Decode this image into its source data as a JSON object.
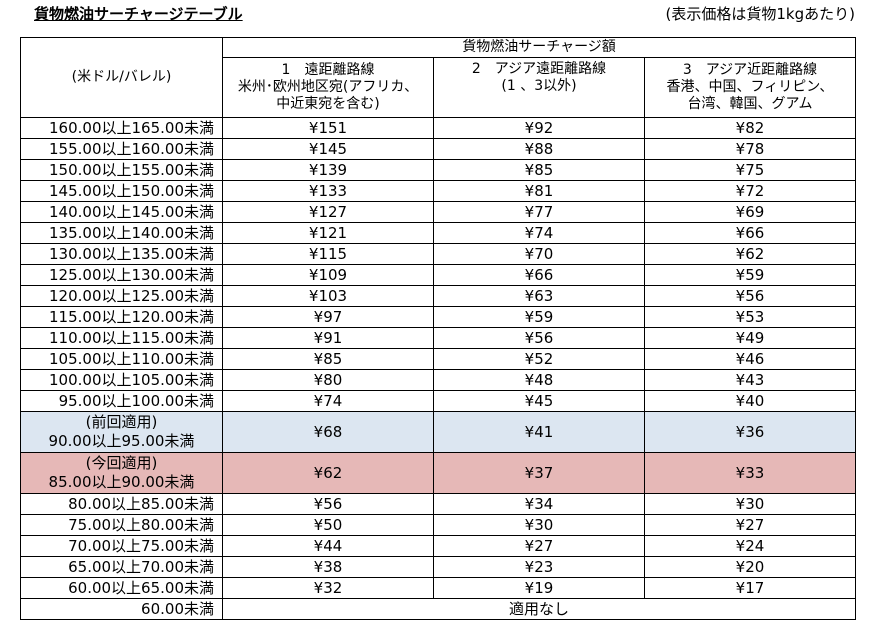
{
  "title": "貨物燃油サーチャージテーブル",
  "note": "(表示価格は貨物1kgあたり)",
  "header": {
    "range_label": "(米ドル/バレル)",
    "group_label": "貨物燃油サーチャージ額",
    "col1": [
      "1　遠距離路線",
      "米州･欧州地区宛(アフリカ、",
      "中近東宛を含む)"
    ],
    "col2": [
      "2　アジア遠距離路線",
      "(1 、3以外)"
    ],
    "col3": [
      "3　アジア近距離路線",
      "香港、中国、フィリピン、",
      "台湾、韓国、グアム"
    ]
  },
  "rows": [
    {
      "range": "160.00以上165.00未満",
      "c1": "¥151",
      "c2": "¥92",
      "c3": "¥82"
    },
    {
      "range": "155.00以上160.00未満",
      "c1": "¥145",
      "c2": "¥88",
      "c3": "¥78"
    },
    {
      "range": "150.00以上155.00未満",
      "c1": "¥139",
      "c2": "¥85",
      "c3": "¥75"
    },
    {
      "range": "145.00以上150.00未満",
      "c1": "¥133",
      "c2": "¥81",
      "c3": "¥72"
    },
    {
      "range": "140.00以上145.00未満",
      "c1": "¥127",
      "c2": "¥77",
      "c3": "¥69"
    },
    {
      "range": "135.00以上140.00未満",
      "c1": "¥121",
      "c2": "¥74",
      "c3": "¥66"
    },
    {
      "range": "130.00以上135.00未満",
      "c1": "¥115",
      "c2": "¥70",
      "c3": "¥62"
    },
    {
      "range": "125.00以上130.00未満",
      "c1": "¥109",
      "c2": "¥66",
      "c3": "¥59"
    },
    {
      "range": "120.00以上125.00未満",
      "c1": "¥103",
      "c2": "¥63",
      "c3": "¥56"
    },
    {
      "range": "115.00以上120.00未満",
      "c1": "¥97",
      "c2": "¥59",
      "c3": "¥53"
    },
    {
      "range": "110.00以上115.00未満",
      "c1": "¥91",
      "c2": "¥56",
      "c3": "¥49"
    },
    {
      "range": "105.00以上110.00未満",
      "c1": "¥85",
      "c2": "¥52",
      "c3": "¥46"
    },
    {
      "range": "100.00以上105.00未満",
      "c1": "¥80",
      "c2": "¥48",
      "c3": "¥43"
    },
    {
      "range": "95.00以上100.00未満",
      "c1": "¥74",
      "c2": "¥45",
      "c3": "¥40"
    }
  ],
  "previous": {
    "tag": "(前回適用)",
    "range": "90.00以上95.00未満",
    "c1": "¥68",
    "c2": "¥41",
    "c3": "¥36"
  },
  "current": {
    "tag": "(今回適用)",
    "range": "85.00以上90.00未満",
    "c1": "¥62",
    "c2": "¥37",
    "c3": "¥33"
  },
  "rows_after": [
    {
      "range": "80.00以上85.00未満",
      "c1": "¥56",
      "c2": "¥34",
      "c3": "¥30"
    },
    {
      "range": "75.00以上80.00未満",
      "c1": "¥50",
      "c2": "¥30",
      "c3": "¥27"
    },
    {
      "range": "70.00以上75.00未満",
      "c1": "¥44",
      "c2": "¥27",
      "c3": "¥24"
    },
    {
      "range": "65.00以上70.00未満",
      "c1": "¥38",
      "c2": "¥23",
      "c3": "¥20"
    },
    {
      "range": "60.00以上65.00未満",
      "c1": "¥32",
      "c2": "¥19",
      "c3": "¥17"
    }
  ],
  "last_row": {
    "range": "60.00未満",
    "value": "適用なし"
  },
  "colors": {
    "previous_row": "#dce6f1",
    "current_row": "#e6b8b7"
  }
}
